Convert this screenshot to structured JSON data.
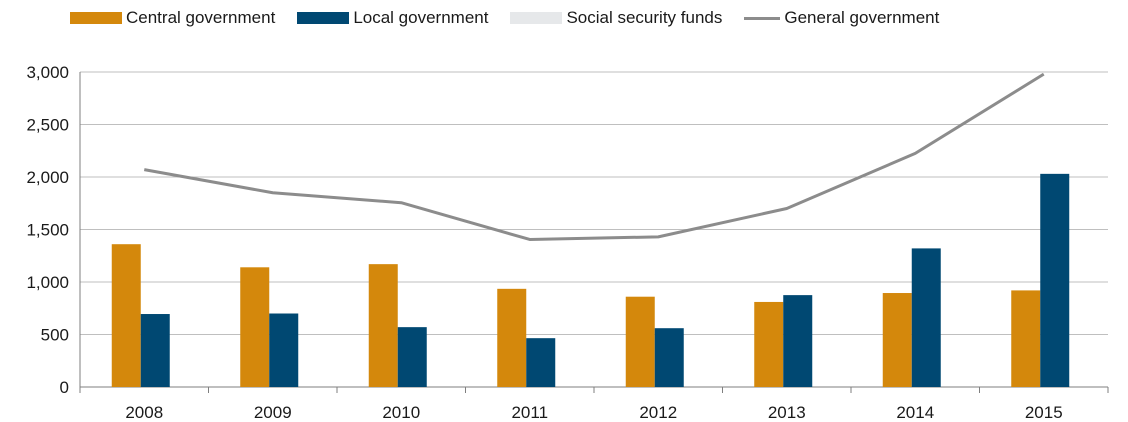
{
  "chart_data": {
    "type": "bar",
    "categories": [
      "2008",
      "2009",
      "2010",
      "2011",
      "2012",
      "2013",
      "2014",
      "2015"
    ],
    "series": [
      {
        "name": "Central government",
        "type": "bar",
        "color": "#D4880C",
        "values": [
          1360,
          1140,
          1170,
          935,
          860,
          810,
          895,
          920
        ]
      },
      {
        "name": "Local government",
        "type": "bar",
        "color": "#004872",
        "values": [
          695,
          700,
          570,
          465,
          560,
          875,
          1320,
          2030
        ]
      },
      {
        "name": "Social security funds",
        "type": "bar",
        "color": "#E6E8EA",
        "values": [
          0,
          0,
          0,
          0,
          0,
          0,
          0,
          0
        ]
      },
      {
        "name": "General government",
        "type": "line",
        "color": "#8C8C8C",
        "values": [
          2070,
          1850,
          1755,
          1405,
          1430,
          1700,
          2225,
          2980
        ]
      }
    ],
    "ylim": [
      0,
      3000
    ],
    "yticks": [
      0,
      500,
      1000,
      1500,
      2000,
      2500,
      3000
    ],
    "ytick_labels": [
      "0",
      "500",
      "1,000",
      "1,500",
      "2,000",
      "2,500",
      "3,000"
    ],
    "grid": true,
    "legend_position": "top"
  }
}
